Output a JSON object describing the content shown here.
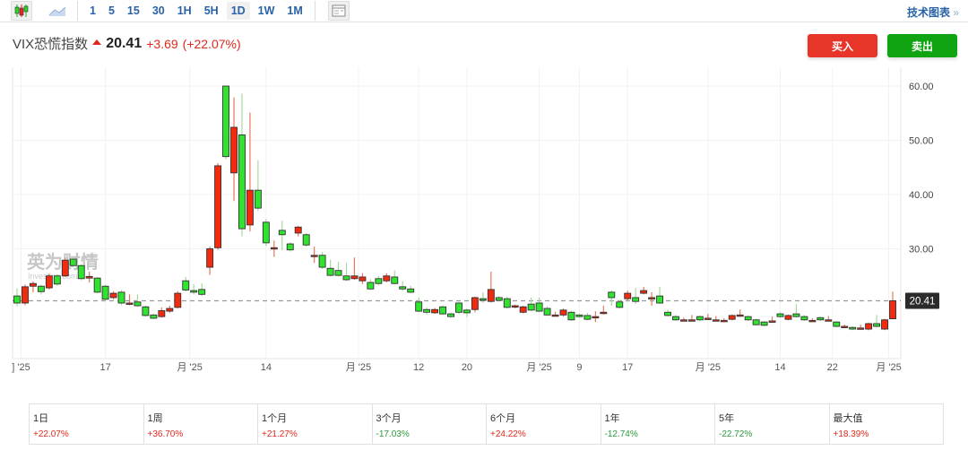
{
  "toolbar": {
    "timeframes": [
      "1",
      "5",
      "15",
      "30",
      "1H",
      "5H",
      "1D",
      "1W",
      "1M"
    ],
    "active": "1D",
    "tech_chart": "技术图表",
    "icons": [
      "candlestick-icon",
      "area-chart-icon",
      "layout-icon"
    ]
  },
  "header": {
    "name": "VIX恐慌指数",
    "price": "20.41",
    "change": "+3.69",
    "change_pct": "(+22.07%)"
  },
  "buttons": {
    "buy": "买入",
    "sell": "卖出"
  },
  "watermark": {
    "text": "英为财情",
    "sub": "Investing.com"
  },
  "colors": {
    "up": "#f22a0e",
    "down": "#2fe32f",
    "up_text": "#e0281c",
    "down_text": "#2a9b3a"
  },
  "chart_data": {
    "type": "candlestick",
    "ylim": [
      13,
      62
    ],
    "yticks": [
      30,
      40,
      50,
      60
    ],
    "ytick_labels": [
      "30.00",
      "40.00",
      "50.00",
      "60.00"
    ],
    "last_price": 20.41,
    "last_label": "20.41",
    "xticks": [
      {
        "i": 0.5,
        "label": "] '25"
      },
      {
        "i": 11,
        "label": "17"
      },
      {
        "i": 21.5,
        "label": "月 '25"
      },
      {
        "i": 31,
        "label": "14"
      },
      {
        "i": 42.5,
        "label": "月 '25"
      },
      {
        "i": 50,
        "label": "12"
      },
      {
        "i": 56,
        "label": "20"
      },
      {
        "i": 65,
        "label": "月 '25"
      },
      {
        "i": 70,
        "label": "9"
      },
      {
        "i": 76,
        "label": "17"
      },
      {
        "i": 86,
        "label": "月 '25"
      },
      {
        "i": 95,
        "label": "14"
      },
      {
        "i": 101.5,
        "label": "22"
      },
      {
        "i": 108.5,
        "label": "月 '25"
      }
    ],
    "ohlc_note": "each entry [open, close, high, low]",
    "candles": [
      [
        21.3,
        20.0,
        22.7,
        19.4
      ],
      [
        20.0,
        23.0,
        23.4,
        19.6
      ],
      [
        23.1,
        23.6,
        24.0,
        22.0
      ],
      [
        23.1,
        22.1,
        23.4,
        21.6
      ],
      [
        22.8,
        25.0,
        25.4,
        22.5
      ],
      [
        25.0,
        23.5,
        25.3,
        23.2
      ],
      [
        25.0,
        27.9,
        28.4,
        24.8
      ],
      [
        28.1,
        26.9,
        28.6,
        26.6
      ],
      [
        26.9,
        24.5,
        27.2,
        24.2
      ],
      [
        24.6,
        24.9,
        25.8,
        23.8
      ],
      [
        24.6,
        22.0,
        24.8,
        21.8
      ],
      [
        23.1,
        20.7,
        23.4,
        20.4
      ],
      [
        21.0,
        21.8,
        22.2,
        20.7
      ],
      [
        22.0,
        20.0,
        22.4,
        19.6
      ],
      [
        19.8,
        20.0,
        21.6,
        19.6
      ],
      [
        20.2,
        19.5,
        21.6,
        19.3
      ],
      [
        19.3,
        17.7,
        19.5,
        17.5
      ],
      [
        17.8,
        17.2,
        18.0,
        17.0
      ],
      [
        17.5,
        18.6,
        19.2,
        17.3
      ],
      [
        18.5,
        19.0,
        19.5,
        18.2
      ],
      [
        19.2,
        21.8,
        22.2,
        19.0
      ],
      [
        24.1,
        22.4,
        24.8,
        22.1
      ],
      [
        22.3,
        22.0,
        23.5,
        21.6
      ],
      [
        22.5,
        21.6,
        23.6,
        21.3
      ],
      [
        26.6,
        30.0,
        30.4,
        25.2
      ],
      [
        30.2,
        45.3,
        45.8,
        29.8
      ],
      [
        60.0,
        47.0,
        60.0,
        46.5
      ],
      [
        44.0,
        52.4,
        57.9,
        38.8
      ],
      [
        51.0,
        33.7,
        58.6,
        32.3
      ],
      [
        34.4,
        40.8,
        55.1,
        33.2
      ],
      [
        40.8,
        37.5,
        46.3,
        37.0
      ],
      [
        34.9,
        31.1,
        35.5,
        30.5
      ],
      [
        30.2,
        30.2,
        31.5,
        28.5
      ],
      [
        33.4,
        32.6,
        35.2,
        29.7
      ],
      [
        30.9,
        29.8,
        31.2,
        29.5
      ],
      [
        32.9,
        34.0,
        34.2,
        32.3
      ],
      [
        32.6,
        30.7,
        32.9,
        30.4
      ],
      [
        28.8,
        28.8,
        30.4,
        27.4
      ],
      [
        28.8,
        26.6,
        29.4,
        26.3
      ],
      [
        26.4,
        25.1,
        28.0,
        24.9
      ],
      [
        26.0,
        25.1,
        27.6,
        24.9
      ],
      [
        25.0,
        24.3,
        27.4,
        24.0
      ],
      [
        24.5,
        25.0,
        28.4,
        24.3
      ],
      [
        24.1,
        24.8,
        25.5,
        23.5
      ],
      [
        23.8,
        22.6,
        24.4,
        22.4
      ],
      [
        24.5,
        23.6,
        25.0,
        23.3
      ],
      [
        24.1,
        25.0,
        25.5,
        23.8
      ],
      [
        24.8,
        23.6,
        26.0,
        23.4
      ],
      [
        23.0,
        22.6,
        24.0,
        22.2
      ],
      [
        22.6,
        22.0,
        23.2,
        21.8
      ],
      [
        20.2,
        18.5,
        21.0,
        18.3
      ],
      [
        18.8,
        18.3,
        19.2,
        17.9
      ],
      [
        18.2,
        18.8,
        19.1,
        18.0
      ],
      [
        19.3,
        18.0,
        19.6,
        17.8
      ],
      [
        18.0,
        17.5,
        18.2,
        17.3
      ],
      [
        20.0,
        18.3,
        20.2,
        18.0
      ],
      [
        18.7,
        18.2,
        19.0,
        17.4
      ],
      [
        18.8,
        21.0,
        21.2,
        18.3
      ],
      [
        20.8,
        20.5,
        22.0,
        20.0
      ],
      [
        20.3,
        22.5,
        25.8,
        20.1
      ],
      [
        21.0,
        20.5,
        21.3,
        20.3
      ],
      [
        20.8,
        19.2,
        21.2,
        19.0
      ],
      [
        19.5,
        19.5,
        19.7,
        19.0
      ],
      [
        18.3,
        19.3,
        19.5,
        18.1
      ],
      [
        19.8,
        18.7,
        21.0,
        18.5
      ],
      [
        20.0,
        18.5,
        21.0,
        18.3
      ],
      [
        19.0,
        17.8,
        19.4,
        17.6
      ],
      [
        17.8,
        17.8,
        18.4,
        17.8
      ],
      [
        17.8,
        18.7,
        19.0,
        17.5
      ],
      [
        18.3,
        16.9,
        18.6,
        16.7
      ],
      [
        17.8,
        17.5,
        18.0,
        17.3
      ],
      [
        17.7,
        17.0,
        18.2,
        16.8
      ],
      [
        17.5,
        17.5,
        18.5,
        16.5
      ],
      [
        18.3,
        18.3,
        19.5,
        17.9
      ],
      [
        22.0,
        21.0,
        22.3,
        19.5
      ],
      [
        20.2,
        19.2,
        20.6,
        19.0
      ],
      [
        20.8,
        21.8,
        22.3,
        20.5
      ],
      [
        21.0,
        20.3,
        22.8,
        19.8
      ],
      [
        21.8,
        22.3,
        23.0,
        21.6
      ],
      [
        21.0,
        21.0,
        22.0,
        19.5
      ],
      [
        21.3,
        20.0,
        23.0,
        19.8
      ],
      [
        18.3,
        17.7,
        18.8,
        17.5
      ],
      [
        17.5,
        16.9,
        17.8,
        16.7
      ],
      [
        16.9,
        16.9,
        17.3,
        16.9
      ],
      [
        16.9,
        16.9,
        17.8,
        16.9
      ],
      [
        17.5,
        16.9,
        17.7,
        16.7
      ],
      [
        17.2,
        17.2,
        18.0,
        17.2
      ],
      [
        16.9,
        16.9,
        17.6,
        16.9
      ],
      [
        16.8,
        16.8,
        17.2,
        16.5
      ],
      [
        17.0,
        17.7,
        17.9,
        16.8
      ],
      [
        17.8,
        17.8,
        18.8,
        17.8
      ],
      [
        17.5,
        16.9,
        17.7,
        16.7
      ],
      [
        16.9,
        16.0,
        17.1,
        15.9
      ],
      [
        16.5,
        15.9,
        16.7,
        15.7
      ],
      [
        16.7,
        16.7,
        17.5,
        16.4
      ],
      [
        18.0,
        17.5,
        18.3,
        17.3
      ],
      [
        17.0,
        17.7,
        17.9,
        16.8
      ],
      [
        18.0,
        17.5,
        19.8,
        17.3
      ],
      [
        17.5,
        16.9,
        17.8,
        16.7
      ],
      [
        16.8,
        16.8,
        17.2,
        16.8
      ],
      [
        17.3,
        16.9,
        17.5,
        16.7
      ],
      [
        16.9,
        16.9,
        17.6,
        16.9
      ],
      [
        16.5,
        15.7,
        16.7,
        15.5
      ],
      [
        15.7,
        15.7,
        16.0,
        15.4
      ],
      [
        15.5,
        15.2,
        15.7,
        15.0
      ],
      [
        15.4,
        15.4,
        16.0,
        15.4
      ],
      [
        15.2,
        16.2,
        16.4,
        15.0
      ],
      [
        16.2,
        15.7,
        17.8,
        15.5
      ],
      [
        15.2,
        16.9,
        17.1,
        15.0
      ],
      [
        17.1,
        20.41,
        22.1,
        17.0
      ]
    ]
  },
  "stats": [
    {
      "label": "1日",
      "value": "+22.07%",
      "dir": "up"
    },
    {
      "label": "1周",
      "value": "+36.70%",
      "dir": "up"
    },
    {
      "label": "1个月",
      "value": "+21.27%",
      "dir": "up"
    },
    {
      "label": "3个月",
      "value": "-17.03%",
      "dir": "down"
    },
    {
      "label": "6个月",
      "value": "+24.22%",
      "dir": "up"
    },
    {
      "label": "1年",
      "value": "-12.74%",
      "dir": "down"
    },
    {
      "label": "5年",
      "value": "-22.72%",
      "dir": "down"
    },
    {
      "label": "最大值",
      "value": "+18.39%",
      "dir": "up"
    }
  ]
}
